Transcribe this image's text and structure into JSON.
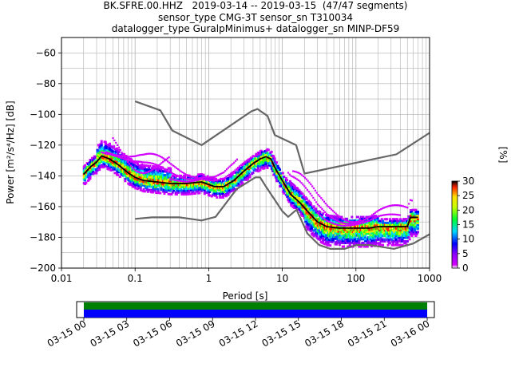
{
  "chart_data": [
    {
      "type": "heatmap",
      "subtype": "ppsd",
      "title_lines": [
        "BK.SFRE.00.HHZ   2019-03-14 -- 2019-03-15  (47/47 segments)",
        "sensor_type CMG-3T sensor_sn T310034",
        "datalogger_type GuralpMinimus+ datalogger_sn MINP-DF59"
      ],
      "xlabel": "Period [s]",
      "ylabel": "Power [m²/s⁴/Hz] [dB]",
      "x_scale": "log",
      "xlim": [
        0.01,
        1000
      ],
      "ylim": [
        -200,
        -50
      ],
      "x_ticks": [
        0.01,
        0.1,
        1,
        10,
        100,
        1000
      ],
      "x_tick_labels": [
        "0.01",
        "0.1",
        "1",
        "10",
        "100",
        "1000"
      ],
      "y_ticks": [
        -200,
        -180,
        -160,
        -140,
        -120,
        -100,
        -80,
        -60
      ],
      "y_tick_labels": [
        "−200",
        "−180",
        "−160",
        "−140",
        "−120",
        "−100",
        "−80",
        "−60"
      ],
      "grid": true,
      "colorbar": {
        "label": "[%]",
        "range": [
          0,
          30
        ],
        "ticks": [
          0,
          5,
          10,
          15,
          20,
          25,
          30
        ],
        "tick_labels": [
          "0",
          "5",
          "10",
          "15",
          "20",
          "25",
          "30"
        ],
        "colors": [
          "#ffffff",
          "#d200ff",
          "#0000ff",
          "#00d7ff",
          "#00ff30",
          "#c8ff00",
          "#ffe000",
          "#ff2000",
          "#000000"
        ]
      },
      "noise_models": {
        "new_high_noise_model": {
          "x": [
            0.1,
            0.22,
            0.32,
            0.8,
            3.8,
            4.6,
            6.3,
            7.9,
            15.4,
            20,
            354.8,
            1000
          ],
          "y": [
            -91.5,
            -97.4,
            -110.5,
            -120,
            -98,
            -96.5,
            -101,
            -113.5,
            -120,
            -138.5,
            -126,
            -112
          ]
        },
        "new_low_noise_model": {
          "x": [
            0.1,
            0.17,
            0.4,
            0.8,
            1.24,
            2.4,
            4.3,
            5,
            6,
            10,
            12,
            15.6,
            21.9,
            31.6,
            45,
            70,
            101,
            154,
            328,
            600,
            1000
          ],
          "y": [
            -168,
            -167,
            -167,
            -169,
            -166.7,
            -148.5,
            -141,
            -141,
            -147,
            -163,
            -166.7,
            -162,
            -177.5,
            -185,
            -187.5,
            -187.5,
            -185,
            -185,
            -187.5,
            -184,
            -178
          ]
        }
      },
      "median_curve": {
        "x": [
          0.02,
          0.025,
          0.03,
          0.035,
          0.045,
          0.06,
          0.08,
          0.1,
          0.13,
          0.2,
          0.3,
          0.5,
          0.8,
          1.2,
          1.6,
          2.2,
          3,
          4,
          5,
          6,
          7,
          8,
          10,
          13,
          17,
          22,
          30,
          40,
          60,
          80,
          100,
          150,
          200,
          300,
          500,
          550,
          700
        ],
        "y": [
          -139,
          -134,
          -131,
          -127,
          -129,
          -133,
          -138,
          -141,
          -143,
          -144,
          -145,
          -145,
          -144,
          -147,
          -147,
          -143,
          -137,
          -132,
          -129,
          -127.5,
          -129,
          -135,
          -143,
          -152,
          -157,
          -163,
          -170,
          -173,
          -174,
          -174,
          -174,
          -174,
          -173,
          -173,
          -173,
          -167,
          -167
        ]
      },
      "time_coverage": {
        "ticks": [
          "03-15 00",
          "03-15 03",
          "03-15 06",
          "03-15 09",
          "03-15 12",
          "03-15 15",
          "03-15 18",
          "03-15 21",
          "03-16 00"
        ],
        "range_hours": [
          -0.5,
          24.5
        ],
        "data_hours": [
          0,
          24
        ],
        "bars": [
          {
            "name": "",
            "color": "#008000"
          },
          {
            "name": "",
            "color": "#0000ff"
          }
        ]
      }
    }
  ]
}
